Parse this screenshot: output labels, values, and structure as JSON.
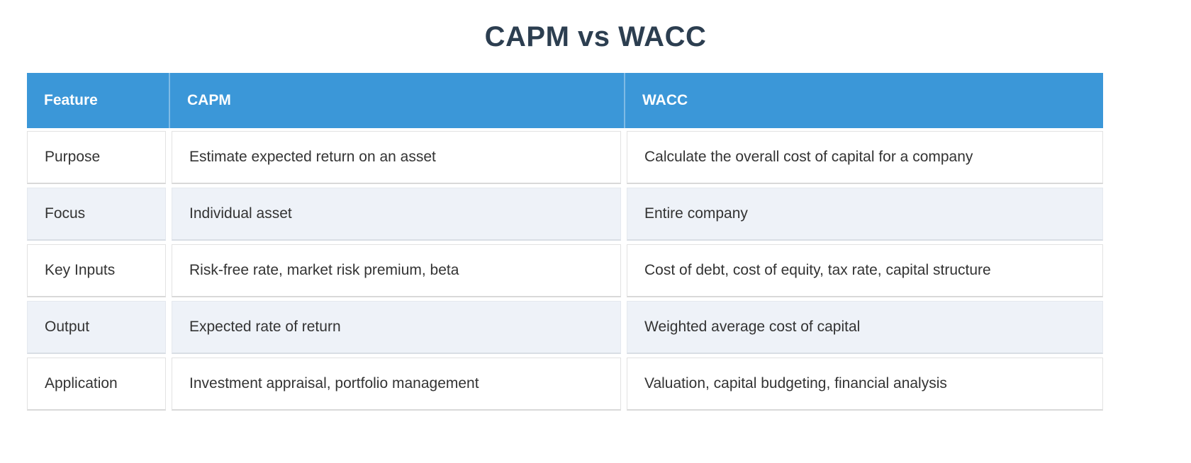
{
  "title": "CAPM vs WACC",
  "colors": {
    "header_bg": "#3b97d8",
    "header_text": "#ffffff",
    "title_text": "#2c3e50",
    "row_alt_bg": "#eef2f8",
    "cell_text": "#333333"
  },
  "table": {
    "columns": [
      "Feature",
      "CAPM",
      "WACC"
    ],
    "rows": [
      {
        "feature": "Purpose",
        "capm": "Estimate expected return on an asset",
        "wacc": "Calculate the overall cost of capital for a company"
      },
      {
        "feature": "Focus",
        "capm": "Individual asset",
        "wacc": "Entire company"
      },
      {
        "feature": "Key Inputs",
        "capm": "Risk-free rate, market risk premium, beta",
        "wacc": "Cost of debt, cost of equity, tax rate, capital structure"
      },
      {
        "feature": "Output",
        "capm": "Expected rate of return",
        "wacc": "Weighted average cost of capital"
      },
      {
        "feature": "Application",
        "capm": "Investment appraisal, portfolio management",
        "wacc": "Valuation, capital budgeting, financial analysis"
      }
    ]
  }
}
